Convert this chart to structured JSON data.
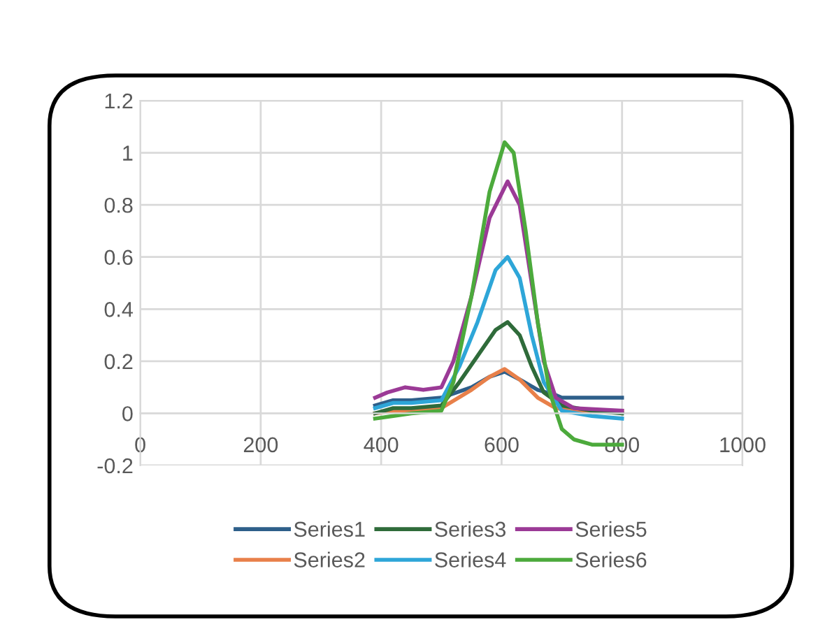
{
  "chart_data": {
    "type": "line",
    "xlim": [
      0,
      1000
    ],
    "xticks": [
      0,
      200,
      400,
      600,
      800,
      1000
    ],
    "ylim": [
      -0.2,
      1.2
    ],
    "yticks": [
      -0.2,
      0,
      0.2,
      0.4,
      0.6,
      0.8,
      1,
      1.2
    ],
    "grid": true,
    "legend": "bottom",
    "marker": "none",
    "line_style": "solid",
    "series": [
      {
        "name": "Series1",
        "color": "#2e5f8a",
        "x": [
          390,
          420,
          450,
          500,
          550,
          580,
          605,
          630,
          660,
          690,
          700,
          750,
          800
        ],
        "values": [
          0.03,
          0.05,
          0.05,
          0.06,
          0.1,
          0.14,
          0.16,
          0.13,
          0.09,
          0.07,
          0.06,
          0.06,
          0.06
        ]
      },
      {
        "name": "Series2",
        "color": "#e8804a",
        "x": [
          390,
          420,
          450,
          500,
          550,
          580,
          605,
          630,
          660,
          690,
          720,
          800
        ],
        "values": [
          0.0,
          0.01,
          0.01,
          0.02,
          0.09,
          0.14,
          0.17,
          0.13,
          0.06,
          0.02,
          0.01,
          0.01
        ]
      },
      {
        "name": "Series3",
        "color": "#2f6b3a",
        "x": [
          390,
          420,
          450,
          500,
          530,
          560,
          590,
          610,
          630,
          650,
          670,
          700,
          750,
          800
        ],
        "values": [
          0.0,
          0.02,
          0.02,
          0.03,
          0.12,
          0.22,
          0.32,
          0.35,
          0.3,
          0.18,
          0.08,
          0.03,
          0.01,
          0.0
        ]
      },
      {
        "name": "Series4",
        "color": "#2ea6d8",
        "x": [
          390,
          420,
          450,
          500,
          530,
          560,
          590,
          610,
          630,
          650,
          670,
          700,
          750,
          800
        ],
        "values": [
          0.02,
          0.04,
          0.04,
          0.05,
          0.18,
          0.35,
          0.55,
          0.6,
          0.52,
          0.3,
          0.12,
          0.01,
          -0.01,
          -0.02
        ]
      },
      {
        "name": "Series5",
        "color": "#9b3a96",
        "x": [
          390,
          410,
          440,
          470,
          500,
          520,
          550,
          580,
          610,
          630,
          650,
          670,
          690,
          720,
          800
        ],
        "values": [
          0.06,
          0.08,
          0.1,
          0.09,
          0.1,
          0.2,
          0.45,
          0.75,
          0.89,
          0.8,
          0.5,
          0.2,
          0.06,
          0.02,
          0.01
        ]
      },
      {
        "name": "Series6",
        "color": "#4caa3c",
        "x": [
          390,
          420,
          450,
          500,
          520,
          550,
          580,
          605,
          620,
          640,
          660,
          680,
          700,
          720,
          750,
          800
        ],
        "values": [
          -0.02,
          -0.01,
          0.0,
          0.01,
          0.12,
          0.45,
          0.85,
          1.04,
          1.0,
          0.7,
          0.35,
          0.08,
          -0.06,
          -0.1,
          -0.12,
          -0.12
        ]
      }
    ]
  }
}
